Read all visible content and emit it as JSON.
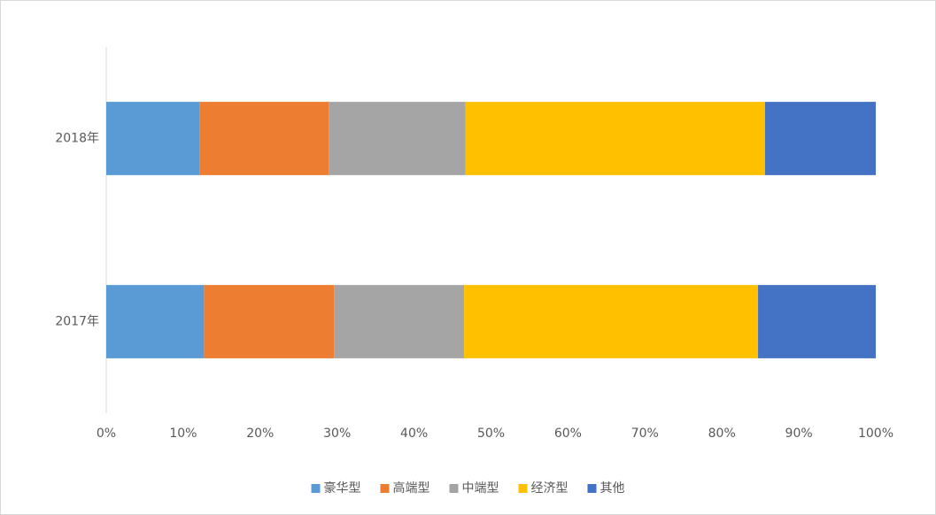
{
  "chart_data": {
    "type": "stacked-bar-horizontal",
    "categories": [
      "2017年",
      "2018年"
    ],
    "series": [
      {
        "name": "豪华型",
        "color": "#5b9bd5",
        "values": [
          12.7,
          12.1
        ]
      },
      {
        "name": "高端型",
        "color": "#ed7d31",
        "values": [
          16.9,
          16.8
        ]
      },
      {
        "name": "中端型",
        "color": "#a5a5a5",
        "values": [
          16.9,
          17.8
        ]
      },
      {
        "name": "经济型",
        "color": "#ffc000",
        "values": [
          38.2,
          38.9
        ]
      },
      {
        "name": "其他",
        "color": "#4472c4",
        "values": [
          15.3,
          14.4
        ]
      }
    ],
    "xlim": [
      0,
      100
    ],
    "xticks": [
      {
        "value": 0,
        "label": "0%"
      },
      {
        "value": 10,
        "label": "10%"
      },
      {
        "value": 20,
        "label": "20%"
      },
      {
        "value": 30,
        "label": "30%"
      },
      {
        "value": 40,
        "label": "40%"
      },
      {
        "value": 50,
        "label": "50%"
      },
      {
        "value": 60,
        "label": "60%"
      },
      {
        "value": 70,
        "label": "70%"
      },
      {
        "value": 80,
        "label": "80%"
      },
      {
        "value": 90,
        "label": "90%"
      },
      {
        "value": 100,
        "label": "100%"
      }
    ],
    "grid": false,
    "legend": "bottom"
  }
}
